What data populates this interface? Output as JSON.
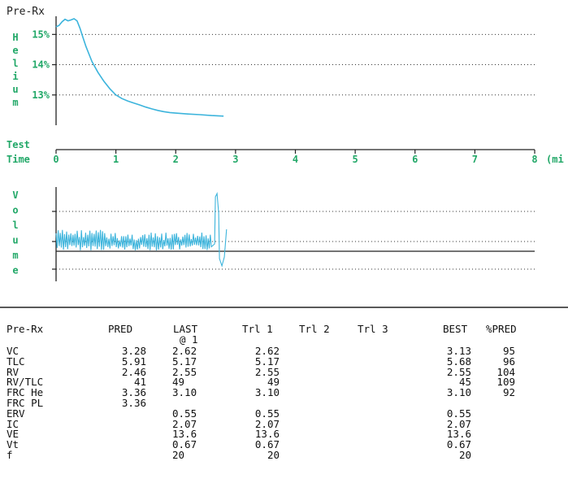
{
  "chart_data": [
    {
      "type": "line",
      "title": "Pre-Rx",
      "ylabel": "Helium",
      "xlabel": "Test Time",
      "x_unit": "(mi",
      "xlim": [
        0,
        8
      ],
      "ylim": [
        12.0,
        15.6
      ],
      "y_ticks": [
        {
          "value": 15,
          "label": "15%"
        },
        {
          "value": 14,
          "label": "14%"
        },
        {
          "value": 13,
          "label": "13%"
        }
      ],
      "x_ticks": [
        "0",
        "1",
        "2",
        "3",
        "4",
        "5",
        "6",
        "7",
        "8"
      ],
      "grid": "dotted horizontal at y ticks",
      "color": "#3cb4dc",
      "series": [
        {
          "x": [
            0.0,
            0.05,
            0.1,
            0.15,
            0.2,
            0.25,
            0.3,
            0.35,
            0.4,
            0.45,
            0.5,
            0.55,
            0.6,
            0.7,
            0.8,
            0.9,
            1.0,
            1.1,
            1.2,
            1.3,
            1.4,
            1.5,
            1.6,
            1.7,
            1.8,
            1.9,
            2.0,
            2.2,
            2.4,
            2.6,
            2.8
          ],
          "y": [
            15.25,
            15.3,
            15.42,
            15.5,
            15.45,
            15.48,
            15.52,
            15.45,
            15.2,
            14.9,
            14.6,
            14.35,
            14.1,
            13.75,
            13.45,
            13.2,
            13.0,
            12.88,
            12.8,
            12.73,
            12.67,
            12.6,
            12.54,
            12.49,
            12.45,
            12.42,
            12.4,
            12.37,
            12.35,
            12.32,
            12.3
          ]
        }
      ]
    },
    {
      "type": "line",
      "ylabel": "Volume",
      "xlim": [
        0,
        8
      ],
      "color": "#3cb4dc",
      "trace_time_range": [
        0,
        2.85
      ],
      "gridlines": "dotted",
      "baseline": "solid"
    }
  ],
  "table": {
    "title": "Pre-Rx",
    "headers": [
      "PRED",
      "LAST",
      "Trl 1",
      "Trl 2",
      "Trl 3",
      "BEST",
      "%PRED"
    ],
    "last_sub": "@ 1",
    "rows": [
      {
        "label": "VC",
        "pred": "3.28",
        "last": "2.62",
        "trl1": "2.62",
        "best": "3.13",
        "pct": "95"
      },
      {
        "label": "TLC",
        "pred": "5.91",
        "last": "5.17",
        "trl1": "5.17",
        "best": "5.68",
        "pct": "96"
      },
      {
        "label": "RV",
        "pred": "2.46",
        "last": "2.55",
        "trl1": "2.55",
        "best": "2.55",
        "pct": "104"
      },
      {
        "label": "RV/TLC",
        "pred": "41",
        "last": "49",
        "trl1": "49",
        "best": "45",
        "pct": "109"
      },
      {
        "label": "FRC He",
        "pred": "3.36",
        "last": "3.10",
        "trl1": "3.10",
        "best": "3.10",
        "pct": "92"
      },
      {
        "label": "FRC PL",
        "pred": "3.36",
        "last": "",
        "trl1": "",
        "best": "",
        "pct": ""
      },
      {
        "label": "ERV",
        "pred": "",
        "last": "0.55",
        "trl1": "0.55",
        "best": "0.55",
        "pct": ""
      },
      {
        "label": "IC",
        "pred": "",
        "last": "2.07",
        "trl1": "2.07",
        "best": "2.07",
        "pct": ""
      },
      {
        "label": "VE",
        "pred": "",
        "last": "13.6",
        "trl1": "13.6",
        "best": "13.6",
        "pct": ""
      },
      {
        "label": "Vt",
        "pred": "",
        "last": "0.67",
        "trl1": "0.67",
        "best": "0.67",
        "pct": ""
      },
      {
        "label": "f",
        "pred": "",
        "last": "20",
        "trl1": "20",
        "best": "20",
        "pct": ""
      }
    ]
  }
}
